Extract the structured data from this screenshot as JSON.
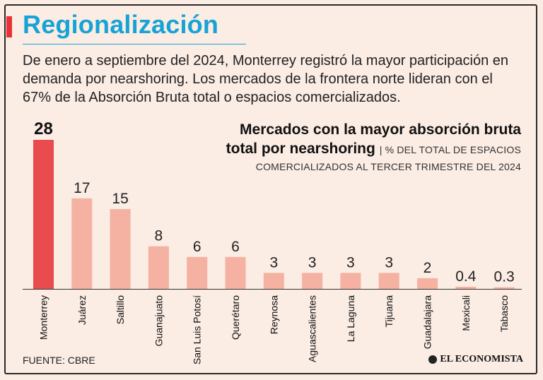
{
  "header": {
    "title": "Regionalización",
    "intro": "De enero a septiembre del 2024, Monterrey registró la mayor participación en demanda por nearshoring. Los mercados de la frontera norte lideran con el 67% de la Absorción Bruta total o espacios comercializados."
  },
  "chart_data": {
    "type": "bar",
    "title": "Mercados con la mayor absorción bruta total por nearshoring",
    "subtitle": "% DEL TOTAL DE ESPACIOS COMERCIALIZADOS AL TERCER TRIMESTRE DEL 2024",
    "subtitle_part1": "% DEL TOTAL DE ESPACIOS",
    "subtitle_part2": "COMERCIALIZADOS AL TERCER TRIMESTRE DEL 2024",
    "title_line1": "Mercados con la mayor absorción bruta",
    "title_line2": "total por nearshoring",
    "categories": [
      "Monterrey",
      "Juárez",
      "Saltillo",
      "Guanajuato",
      "San Luis Potosí",
      "Querétaro",
      "Reynosa",
      "Aguascalientes",
      "La Laguna",
      "Tijuana",
      "Guadalajara",
      "Mexicali",
      "Tabasco"
    ],
    "values": [
      28,
      17,
      15,
      8,
      6,
      6,
      3,
      3,
      3,
      3,
      2,
      0.4,
      0.3
    ],
    "labels": [
      "28",
      "17",
      "15",
      "8",
      "6",
      "6",
      "3",
      "3",
      "3",
      "3",
      "2",
      "0.4",
      "0.3"
    ],
    "ylim": [
      0,
      28
    ],
    "xlabel": "",
    "ylabel": "",
    "highlight_color": "#ea4b4f",
    "bar_color": "#f5b2a2"
  },
  "footer": {
    "source": "FUENTE: CBRE",
    "brand": "EL ECONOMISTA"
  }
}
